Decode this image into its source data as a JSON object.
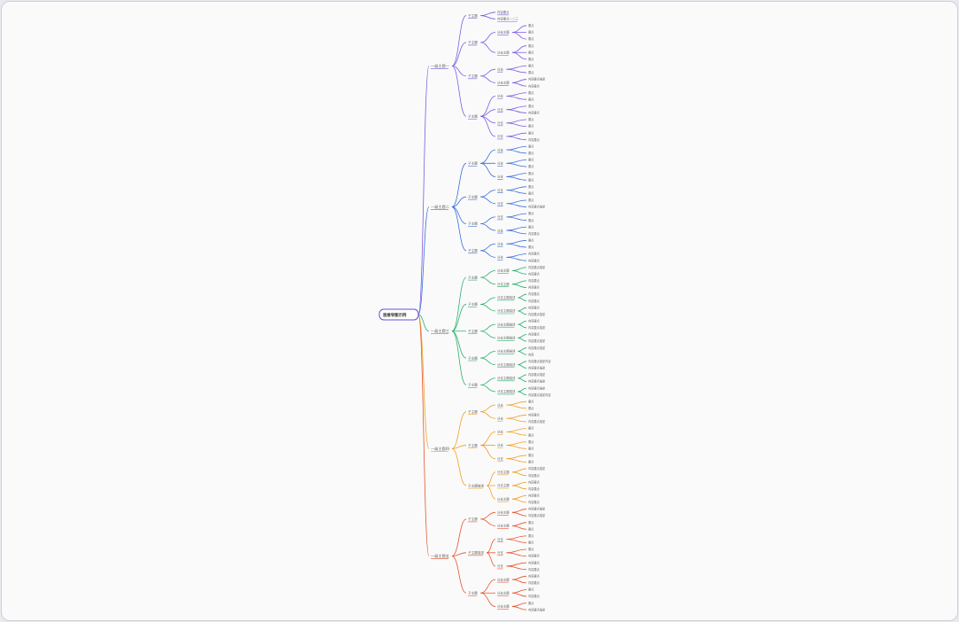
{
  "root": {
    "label": "思维导图示例"
  },
  "branches": [
    {
      "label": "一级主题一",
      "color": "#7b5ce0",
      "children": [
        {
          "label": "子主题",
          "children": [
            {
              "label": "内容要点",
              "children": []
            },
            {
              "label": "内容要点一二三",
              "children": []
            }
          ]
        },
        {
          "label": "子主题",
          "children": [
            {
              "label": "分支主题",
              "children": [
                "要点",
                "要点",
                "要点"
              ]
            },
            {
              "label": "分支主题",
              "children": [
                "要点",
                "要点",
                "要点"
              ]
            }
          ]
        },
        {
          "label": "子主题",
          "children": [
            {
              "label": "分支",
              "children": [
                "要点",
                "要点"
              ]
            },
            {
              "label": "分支主题",
              "children": [
                "内容要点描述",
                "内容要点"
              ]
            }
          ]
        },
        {
          "label": "子主题",
          "children": [
            {
              "label": "分支",
              "children": [
                "要点",
                "要点"
              ]
            },
            {
              "label": "分支",
              "children": [
                "要点",
                "内容要点"
              ]
            },
            {
              "label": "分支",
              "children": [
                "要点",
                "要点"
              ]
            },
            {
              "label": "分支",
              "children": [
                "要点",
                "内容要点"
              ]
            }
          ]
        }
      ]
    },
    {
      "label": "一级主题二",
      "color": "#3b6fd6",
      "children": [
        {
          "label": "子主题",
          "children": [
            {
              "label": "分支",
              "children": [
                "要点",
                "要点"
              ]
            },
            {
              "label": "分支",
              "children": [
                "要点",
                "要点"
              ]
            },
            {
              "label": "分支",
              "children": [
                "要点",
                "要点"
              ]
            }
          ]
        },
        {
          "label": "子主题",
          "children": [
            {
              "label": "分支",
              "children": [
                "要点",
                "要点"
              ]
            },
            {
              "label": "分支",
              "children": [
                "要点",
                "内容要点描述"
              ]
            }
          ]
        },
        {
          "label": "子主题",
          "children": [
            {
              "label": "分支",
              "children": [
                "要点",
                "要点"
              ]
            },
            {
              "label": "分支",
              "children": [
                "要点",
                "内容要点"
              ]
            }
          ]
        },
        {
          "label": "子主题",
          "children": [
            {
              "label": "分支",
              "children": [
                "要点",
                "要点"
              ]
            },
            {
              "label": "分支",
              "children": [
                "内容要点",
                "内容要点"
              ]
            }
          ]
        }
      ]
    },
    {
      "label": "一级主题三",
      "color": "#2bb36a",
      "children": [
        {
          "label": "子主题",
          "children": [
            {
              "label": "分支主题",
              "children": [
                "内容要点描述",
                "内容要点"
              ]
            },
            {
              "label": "分支主题",
              "children": [
                "内容要点",
                "内容要点"
              ]
            }
          ]
        },
        {
          "label": "子主题",
          "children": [
            {
              "label": "分支主题描述",
              "children": [
                "内容要点",
                "内容要点"
              ]
            },
            {
              "label": "分支主题描述",
              "children": [
                "内容要点",
                "内容要点描述"
              ]
            }
          ]
        },
        {
          "label": "子主题",
          "children": [
            {
              "label": "分支主题描述",
              "children": [
                "内容要点",
                "内容要点描述"
              ]
            },
            {
              "label": "分支主题描述",
              "children": [
                "内容要点",
                "内容要点描述"
              ]
            }
          ]
        },
        {
          "label": "子主题",
          "children": [
            {
              "label": "分支主题描述",
              "children": [
                "内容要点描述",
                "内容"
              ]
            },
            {
              "label": "分支主题描述",
              "children": [
                "内容要点描述内容",
                "内容要点描述"
              ]
            }
          ]
        },
        {
          "label": "子主题",
          "children": [
            {
              "label": "分支主题描述",
              "children": [
                "内容要点描述",
                "内容要点描述"
              ]
            },
            {
              "label": "分支主题描述",
              "children": [
                "内容要点描述",
                "内容要点描述内容"
              ]
            }
          ]
        }
      ]
    },
    {
      "label": "一级主题四",
      "color": "#f0a020",
      "children": [
        {
          "label": "子主题",
          "children": [
            {
              "label": "分支",
              "children": [
                "要点",
                "要点"
              ]
            },
            {
              "label": "分支",
              "children": [
                "内容要点",
                "内容要点描述"
              ]
            }
          ]
        },
        {
          "label": "子主题",
          "children": [
            {
              "label": "分支",
              "children": [
                "要点",
                "要点"
              ]
            },
            {
              "label": "分支",
              "children": [
                "要点",
                "要点"
              ]
            },
            {
              "label": "分支",
              "children": [
                "要点",
                "要点"
              ]
            }
          ]
        },
        {
          "label": "子主题描述",
          "children": [
            {
              "label": "分支主题",
              "children": [
                "内容要点描述",
                "内容要点"
              ]
            },
            {
              "label": "分支主题",
              "children": [
                "内容要点",
                "内容要点"
              ]
            },
            {
              "label": "分支主题",
              "children": [
                "内容要点",
                "内容要点"
              ]
            }
          ]
        }
      ]
    },
    {
      "label": "一级主题五",
      "color": "#e8552a",
      "children": [
        {
          "label": "子主题",
          "children": [
            {
              "label": "分支主题",
              "children": [
                "内容要点描述",
                "内容要点描述"
              ]
            },
            {
              "label": "分支主题",
              "children": [
                "要点",
                "要点"
              ]
            }
          ]
        },
        {
          "label": "子主题描述",
          "children": [
            {
              "label": "分支",
              "children": [
                "要点",
                "要点"
              ]
            },
            {
              "label": "分支",
              "children": [
                "要点",
                "内容要点"
              ]
            },
            {
              "label": "分支",
              "children": [
                "内容要点",
                "内容要点"
              ]
            }
          ]
        },
        {
          "label": "子主题",
          "children": [
            {
              "label": "分支主题",
              "children": [
                "内容要点",
                "内容要点"
              ]
            },
            {
              "label": "分支主题",
              "children": [
                "要点",
                "内容要点"
              ]
            },
            {
              "label": "分支主题",
              "children": [
                "要点",
                "内容要点描述"
              ]
            }
          ]
        }
      ]
    }
  ]
}
